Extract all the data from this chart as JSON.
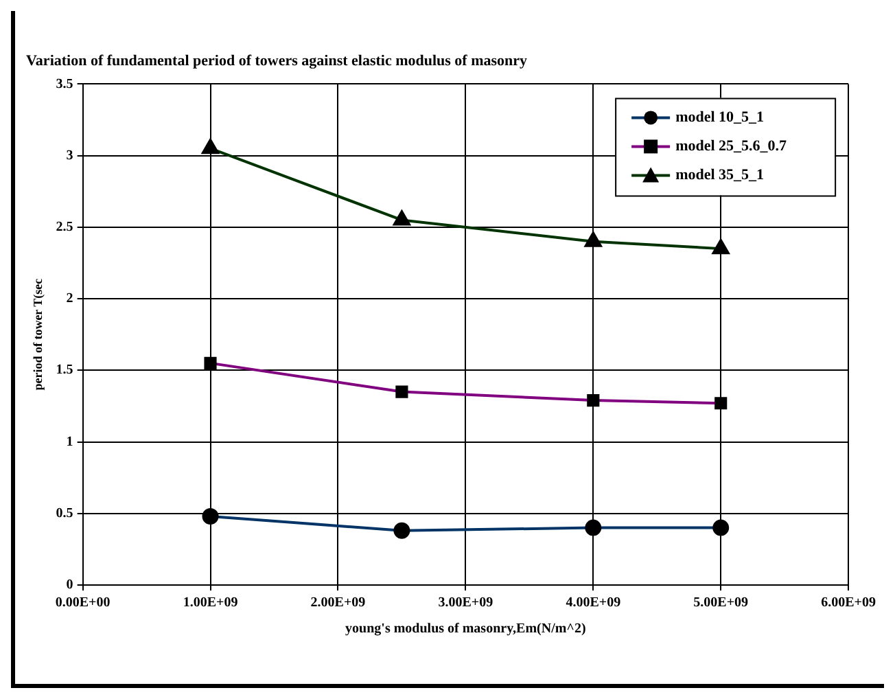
{
  "chart_data": {
    "type": "line",
    "title": "Variation of fundamental period of towers against elastic modulus of masonry",
    "xlabel": "young's modulus of masonry,Em(N/m^2)",
    "ylabel": "period of tower T(sec",
    "x": [
      1000000000,
      2500000000,
      4000000000,
      5000000000
    ],
    "series": [
      {
        "name": "model 10_5_1",
        "color": "#003366",
        "marker": "circle",
        "values": [
          0.48,
          0.38,
          0.4,
          0.4
        ]
      },
      {
        "name": "model 25_5.6_0.7",
        "color": "#800080",
        "marker": "square",
        "values": [
          1.55,
          1.35,
          1.29,
          1.27
        ]
      },
      {
        "name": "model 35_5_1",
        "color": "#003300",
        "marker": "triangle",
        "values": [
          3.05,
          2.55,
          2.4,
          2.35
        ]
      }
    ],
    "xlim": [
      0,
      6000000000
    ],
    "xticks": [
      {
        "value": 0,
        "label": "0.00E+00"
      },
      {
        "value": 1000000000,
        "label": "1.00E+09"
      },
      {
        "value": 2000000000,
        "label": "2.00E+09"
      },
      {
        "value": 3000000000,
        "label": "3.00E+09"
      },
      {
        "value": 4000000000,
        "label": "4.00E+09"
      },
      {
        "value": 5000000000,
        "label": "5.00E+09"
      },
      {
        "value": 6000000000,
        "label": "6.00E+09"
      }
    ],
    "ylim": [
      0,
      3.5
    ],
    "yticks": [
      0,
      0.5,
      1,
      1.5,
      2,
      2.5,
      3,
      3.5
    ],
    "grid": true,
    "legend": "top right",
    "line_style": "solid"
  }
}
